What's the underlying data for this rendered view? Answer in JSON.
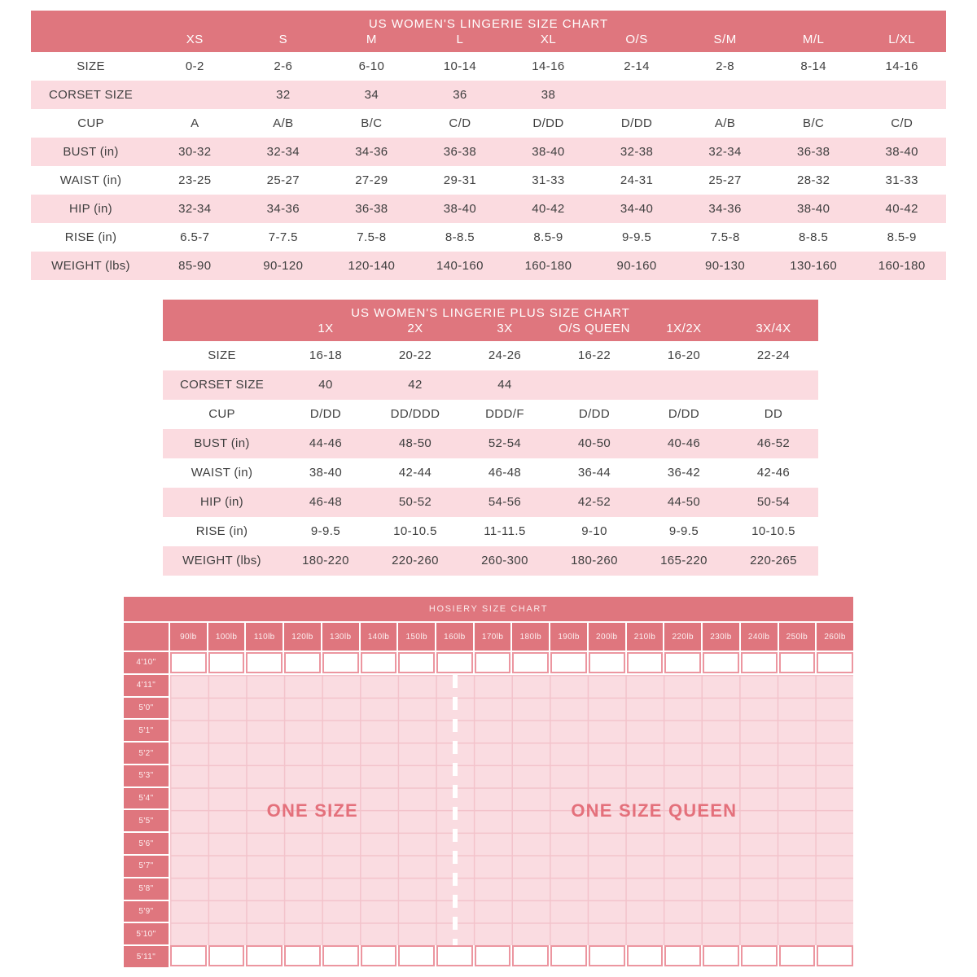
{
  "colors": {
    "header_red": "#df767e",
    "stripe_pink": "#fbdbe0",
    "hosiery_fill_pink": "#fadce1",
    "hosiery_grid_line": "#f3c3cb",
    "hosiery_cell_border": "#ec96a0",
    "region_label_pink": "#e4707b",
    "text_dark": "#3f3f3f",
    "header_text": "#ffffff"
  },
  "lingerie_chart": {
    "title": "US WOMEN'S LINGERIE SIZE CHART",
    "columns": [
      "XS",
      "S",
      "M",
      "L",
      "XL",
      "O/S",
      "S/M",
      "M/L",
      "L/XL"
    ],
    "rows": [
      {
        "label": "SIZE",
        "values": [
          "0-2",
          "2-6",
          "6-10",
          "10-14",
          "14-16",
          "2-14",
          "2-8",
          "8-14",
          "14-16"
        ]
      },
      {
        "label": "CORSET SIZE",
        "values": [
          "",
          "32",
          "34",
          "36",
          "38",
          "",
          "",
          "",
          ""
        ]
      },
      {
        "label": "CUP",
        "values": [
          "A",
          "A/B",
          "B/C",
          "C/D",
          "D/DD",
          "D/DD",
          "A/B",
          "B/C",
          "C/D"
        ]
      },
      {
        "label": "BUST (in)",
        "values": [
          "30-32",
          "32-34",
          "34-36",
          "36-38",
          "38-40",
          "32-38",
          "32-34",
          "36-38",
          "38-40"
        ]
      },
      {
        "label": "WAIST (in)",
        "values": [
          "23-25",
          "25-27",
          "27-29",
          "29-31",
          "31-33",
          "24-31",
          "25-27",
          "28-32",
          "31-33"
        ]
      },
      {
        "label": "HIP (in)",
        "values": [
          "32-34",
          "34-36",
          "36-38",
          "38-40",
          "40-42",
          "34-40",
          "34-36",
          "38-40",
          "40-42"
        ]
      },
      {
        "label": "RISE (in)",
        "values": [
          "6.5-7",
          "7-7.5",
          "7.5-8",
          "8-8.5",
          "8.5-9",
          "9-9.5",
          "7.5-8",
          "8-8.5",
          "8.5-9"
        ]
      },
      {
        "label": "WEIGHT (lbs)",
        "values": [
          "85-90",
          "90-120",
          "120-140",
          "140-160",
          "160-180",
          "90-160",
          "90-130",
          "130-160",
          "160-180"
        ]
      }
    ]
  },
  "plus_chart": {
    "title": "US WOMEN'S LINGERIE PLUS SIZE CHART",
    "columns": [
      "1X",
      "2X",
      "3X",
      "O/S QUEEN",
      "1X/2X",
      "3X/4X"
    ],
    "rows": [
      {
        "label": "SIZE",
        "values": [
          "16-18",
          "20-22",
          "24-26",
          "16-22",
          "16-20",
          "22-24"
        ]
      },
      {
        "label": "CORSET SIZE",
        "values": [
          "40",
          "42",
          "44",
          "",
          "",
          ""
        ]
      },
      {
        "label": "CUP",
        "values": [
          "D/DD",
          "DD/DDD",
          "DDD/F",
          "D/DD",
          "D/DD",
          "DD"
        ]
      },
      {
        "label": "BUST (in)",
        "values": [
          "44-46",
          "48-50",
          "52-54",
          "40-50",
          "40-46",
          "46-52"
        ]
      },
      {
        "label": "WAIST (in)",
        "values": [
          "38-40",
          "42-44",
          "46-48",
          "36-44",
          "36-42",
          "42-46"
        ]
      },
      {
        "label": "HIP (in)",
        "values": [
          "46-48",
          "50-52",
          "54-56",
          "42-52",
          "44-50",
          "50-54"
        ]
      },
      {
        "label": "RISE (in)",
        "values": [
          "9-9.5",
          "10-10.5",
          "11-11.5",
          "9-10",
          "9-9.5",
          "10-10.5"
        ]
      },
      {
        "label": "WEIGHT (lbs)",
        "values": [
          "180-220",
          "220-260",
          "260-300",
          "180-260",
          "165-220",
          "220-265"
        ]
      }
    ]
  },
  "hosiery_chart": {
    "title": "HOSIERY SIZE CHART",
    "weight_columns": [
      "90lb",
      "100lb",
      "110lb",
      "120lb",
      "130lb",
      "140lb",
      "150lb",
      "160lb",
      "170lb",
      "180lb",
      "190lb",
      "200lb",
      "210lb",
      "220lb",
      "230lb",
      "240lb",
      "250lb",
      "260lb"
    ],
    "height_rows": [
      "4'10\"",
      "4'11\"",
      "5'0\"",
      "5'1\"",
      "5'2\"",
      "5'3\"",
      "5'4\"",
      "5'5\"",
      "5'6\"",
      "5'7\"",
      "5'8\"",
      "5'9\"",
      "5'10\"",
      "5'11\""
    ],
    "regions": [
      {
        "label": "ONE SIZE"
      },
      {
        "label": "ONE SIZE QUEEN"
      }
    ]
  }
}
